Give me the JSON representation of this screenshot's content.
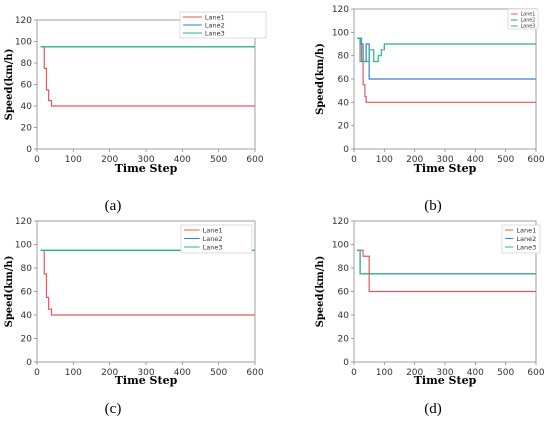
{
  "chart_data": [
    {
      "type": "line",
      "caption": "(a)",
      "xlabel": "Time Step",
      "ylabel": "Speed(km/h)",
      "xlim": [
        0,
        600
      ],
      "ylim": [
        0,
        120
      ],
      "xticks": [
        0,
        100,
        200,
        300,
        400,
        500,
        600
      ],
      "yticks": [
        0,
        20,
        40,
        60,
        80,
        100,
        120
      ],
      "legend": "top-right",
      "legend_entries": [
        "Lane1",
        "Lane2",
        "Lane3"
      ],
      "series": [
        {
          "name": "Lane1",
          "color": "#e8575f",
          "x": [
            20,
            20,
            26,
            26,
            32,
            32,
            40,
            40,
            600
          ],
          "y": [
            95,
            75,
            75,
            55,
            55,
            45,
            45,
            40,
            40
          ]
        },
        {
          "name": "Lane2",
          "color": "#3a7fd5",
          "x": [
            10,
            600
          ],
          "y": [
            95,
            95
          ]
        },
        {
          "name": "Lane3",
          "color": "#2bb583",
          "x": [
            10,
            600
          ],
          "y": [
            95,
            95
          ]
        }
      ]
    },
    {
      "type": "line",
      "caption": "(b)",
      "xlabel": "Time Step",
      "ylabel": "Speed(km/h)",
      "xlim": [
        0,
        600
      ],
      "ylim": [
        0,
        120
      ],
      "xticks": [
        0,
        100,
        200,
        300,
        400,
        500,
        600
      ],
      "yticks": [
        0,
        20,
        40,
        60,
        80,
        100,
        120
      ],
      "legend": "top-right",
      "legend_entries": [
        "Lane1",
        "Lane2",
        "Lane3"
      ],
      "series": [
        {
          "name": "Lane1",
          "color": "#e8575f",
          "x": [
            10,
            20,
            20,
            30,
            30,
            36,
            36,
            40,
            40,
            600
          ],
          "y": [
            95,
            95,
            75,
            75,
            55,
            55,
            45,
            45,
            40,
            40
          ]
        },
        {
          "name": "Lane2",
          "color": "#3a7fd5",
          "x": [
            10,
            20,
            20,
            30,
            30,
            40,
            40,
            50,
            50,
            600
          ],
          "y": [
            95,
            95,
            90,
            90,
            75,
            75,
            90,
            90,
            60,
            60
          ]
        },
        {
          "name": "Lane3",
          "color": "#2bb583",
          "x": [
            10,
            25,
            25,
            50,
            50,
            65,
            65,
            80,
            80,
            90,
            90,
            100,
            100,
            600
          ],
          "y": [
            95,
            95,
            75,
            75,
            85,
            85,
            75,
            75,
            80,
            80,
            85,
            85,
            90,
            90
          ]
        }
      ]
    },
    {
      "type": "line",
      "caption": "(c)",
      "xlabel": "Time Step",
      "ylabel": "Speed(km/h)",
      "xlim": [
        0,
        600
      ],
      "ylim": [
        0,
        120
      ],
      "xticks": [
        0,
        100,
        200,
        300,
        400,
        500,
        600
      ],
      "yticks": [
        0,
        20,
        40,
        60,
        80,
        100,
        120
      ],
      "legend": "top-right",
      "legend_entries": [
        "Lane1",
        "Lane2",
        "Lane3"
      ],
      "series": [
        {
          "name": "Lane1",
          "color": "#e8575f",
          "x": [
            20,
            20,
            26,
            26,
            32,
            32,
            40,
            40,
            600
          ],
          "y": [
            95,
            75,
            75,
            55,
            55,
            45,
            45,
            40,
            40
          ]
        },
        {
          "name": "Lane2",
          "color": "#3a7fd5",
          "x": [
            10,
            600
          ],
          "y": [
            95,
            95
          ]
        },
        {
          "name": "Lane3",
          "color": "#2bb583",
          "x": [
            10,
            600
          ],
          "y": [
            95,
            95
          ]
        }
      ]
    },
    {
      "type": "line",
      "caption": "(d)",
      "xlabel": "Time Step",
      "ylabel": "Speed(km/h)",
      "xlim": [
        0,
        600
      ],
      "ylim": [
        0,
        120
      ],
      "xticks": [
        0,
        100,
        200,
        300,
        400,
        500,
        600
      ],
      "yticks": [
        0,
        20,
        40,
        60,
        80,
        100,
        120
      ],
      "legend": "top-right",
      "legend_entries": [
        "Lane1",
        "Lane2",
        "Lane3"
      ],
      "series": [
        {
          "name": "Lane1",
          "color": "#e8575f",
          "x": [
            10,
            30,
            30,
            50,
            50,
            600
          ],
          "y": [
            95,
            95,
            90,
            90,
            60,
            60
          ]
        },
        {
          "name": "Lane2",
          "color": "#3a7fd5",
          "x": [
            10,
            20,
            20,
            600
          ],
          "y": [
            95,
            95,
            75,
            75
          ]
        },
        {
          "name": "Lane3",
          "color": "#2bb583",
          "x": [
            10,
            20,
            20,
            600
          ],
          "y": [
            95,
            95,
            75,
            75
          ]
        }
      ]
    }
  ]
}
